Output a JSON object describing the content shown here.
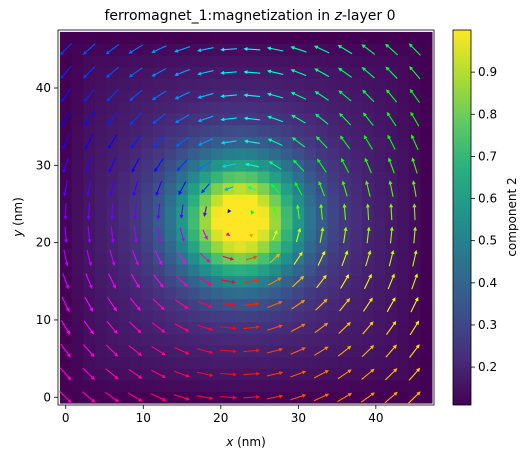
{
  "chart_data": {
    "type": "heatmap",
    "title": {
      "prefix": "ferromagnet_1:magnetization in ",
      "italic": "z",
      "suffix": "-layer 0"
    },
    "xlabel": {
      "italic": "x",
      "suffix": " (nm)"
    },
    "ylabel": {
      "italic": "y",
      "suffix": " (nm)"
    },
    "xlim": [
      -1,
      47.5
    ],
    "ylim": [
      -1,
      47.5
    ],
    "xticks": [
      0,
      10,
      20,
      30,
      40
    ],
    "yticks": [
      0,
      10,
      20,
      30,
      40
    ],
    "grid": {
      "nx": 32,
      "ny": 32,
      "cell_nm": 1.5,
      "origin": -0.75
    },
    "field": {
      "description_of_values": "out-of-plane component (component 2), peaks at vortex core",
      "core_x": 22.5,
      "core_y": 23.0,
      "min": 0.11,
      "max": 1.0
    },
    "quiver": {
      "step_cells": 2,
      "arrow_colormap": "hsv"
    },
    "colorbar": {
      "label": "component 2",
      "min": 0.11,
      "max": 1.0,
      "ticks": [
        0.2,
        0.3,
        0.4,
        0.5,
        0.6,
        0.7,
        0.8,
        0.9
      ],
      "tick_labels": [
        "0.2",
        "0.3",
        "0.4",
        "0.5",
        "0.6",
        "0.7",
        "0.8",
        "0.9"
      ]
    }
  }
}
